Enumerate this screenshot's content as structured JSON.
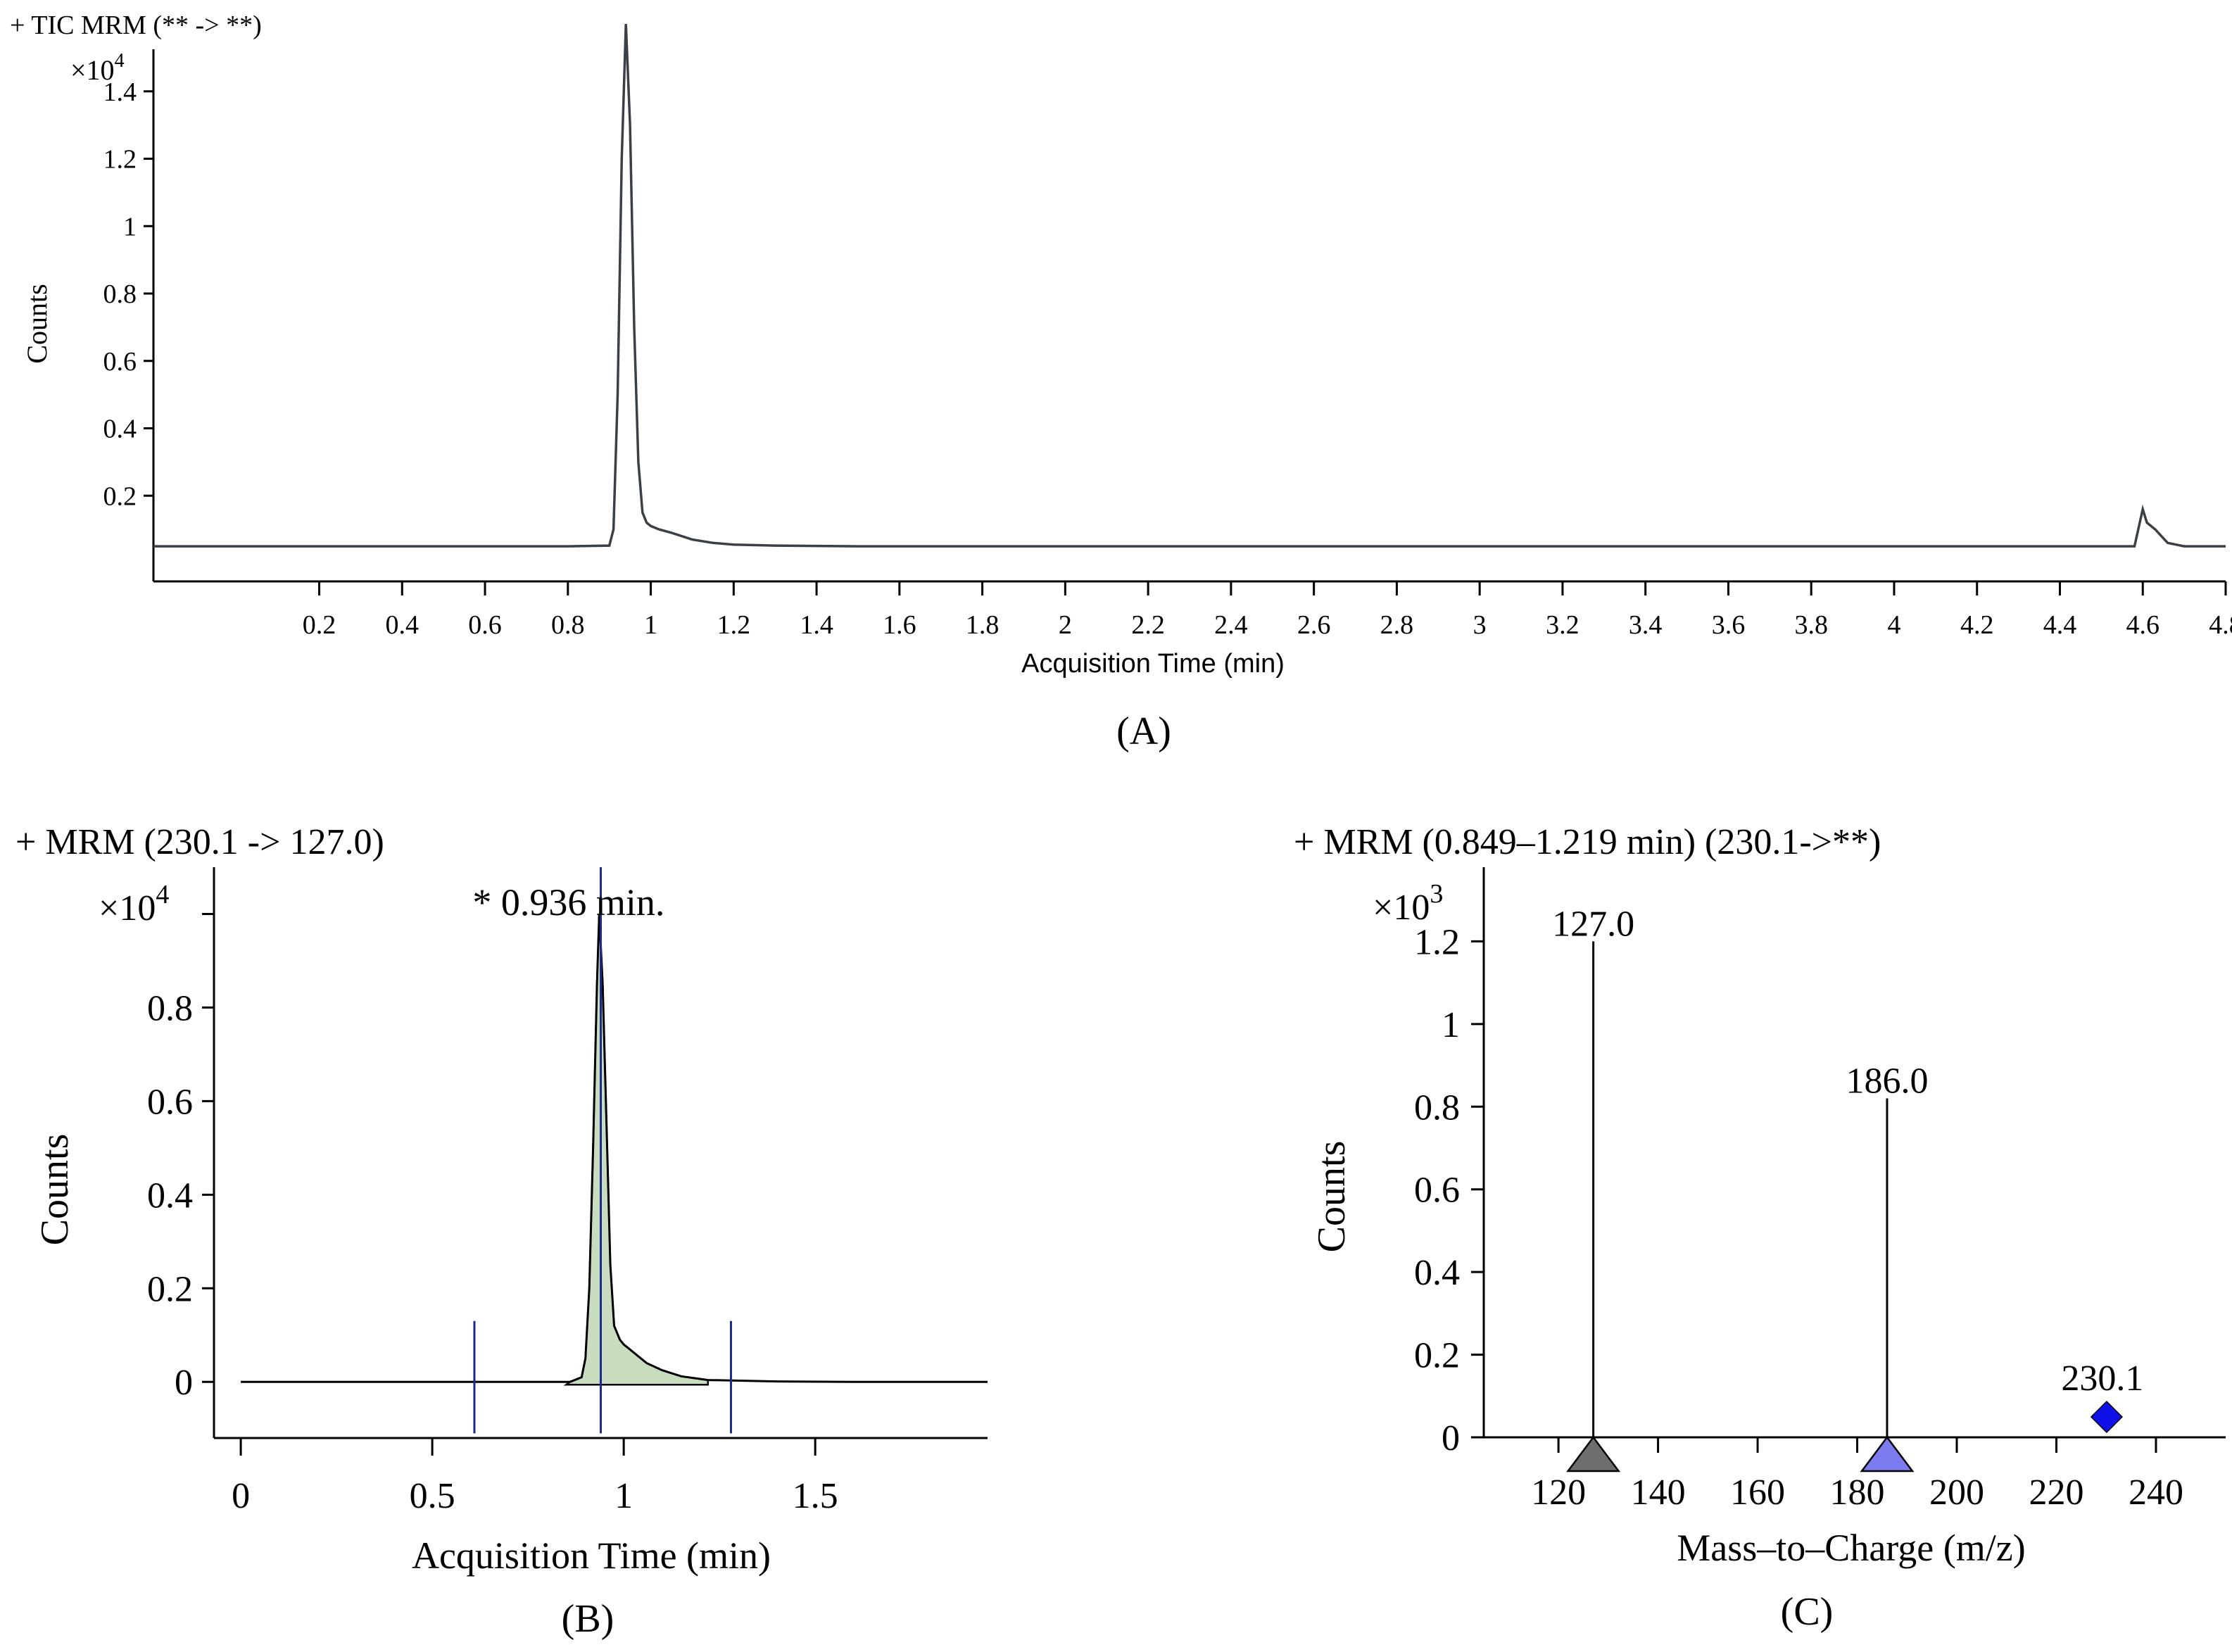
{
  "chart_data": [
    {
      "type": "line",
      "panel_label": "(A)",
      "title": "+ TIC MRM (** -> **)",
      "ylabel": "Counts",
      "xlabel": "Acquisition Time (min)",
      "y_multiplier": "×10",
      "y_multiplier_exp": "4",
      "xlim": [
        -0.2,
        4.8
      ],
      "ylim": [
        0.0,
        1.6
      ],
      "x_ticks": [
        0.2,
        0.4,
        0.6,
        0.8,
        1,
        1.2,
        1.4,
        1.6,
        1.8,
        2,
        2.2,
        2.4,
        2.6,
        2.8,
        3,
        3.2,
        3.4,
        3.6,
        3.8,
        4,
        4.2,
        4.4,
        4.6,
        4.8
      ],
      "x_tick_labels": [
        "0.2",
        "0.4",
        "0.6",
        "0.8",
        "1",
        "1.2",
        "1.4",
        "1.6",
        "1.8",
        "2",
        "2.2",
        "2.4",
        "2.6",
        "2.8",
        "3",
        "3.2",
        "3.4",
        "3.6",
        "3.8",
        "4",
        "4.2",
        "4.4",
        "4.6",
        "4.8"
      ],
      "y_ticks": [
        0.2,
        0.4,
        0.6,
        0.8,
        1,
        1.2,
        1.4
      ],
      "y_tick_labels": [
        "0.2",
        "0.4",
        "0.6",
        "0.8",
        "1",
        "1.2",
        "1.4"
      ],
      "line_color": "#3b4046",
      "series": [
        {
          "x": [
            -0.2,
            0.8,
            0.9,
            0.91,
            0.92,
            0.93,
            0.94,
            0.95,
            0.96,
            0.97,
            0.98,
            0.99,
            1.0,
            1.02,
            1.05,
            1.1,
            1.15,
            1.2,
            1.3,
            1.5,
            2.0,
            2.5,
            3.0,
            3.5,
            4.0,
            4.3,
            4.58,
            4.6,
            4.61,
            4.63,
            4.66,
            4.7,
            4.8
          ],
          "y": [
            0.05,
            0.05,
            0.052,
            0.1,
            0.5,
            1.2,
            1.6,
            1.3,
            0.7,
            0.3,
            0.15,
            0.12,
            0.11,
            0.1,
            0.09,
            0.07,
            0.06,
            0.055,
            0.052,
            0.05,
            0.05,
            0.05,
            0.05,
            0.05,
            0.05,
            0.05,
            0.05,
            0.16,
            0.12,
            0.1,
            0.06,
            0.05,
            0.05
          ]
        }
      ]
    },
    {
      "type": "line",
      "panel_label": "(B)",
      "title": "+ MRM (230.1 -> 127.0)",
      "ylabel": "Counts",
      "xlabel": "Acquisition Time (min)",
      "y_multiplier": "×10",
      "y_multiplier_exp": "4",
      "xlim": [
        -0.07,
        1.95
      ],
      "ylim": [
        -0.12,
        1.1
      ],
      "x_ticks": [
        0,
        0.5,
        1,
        1.5
      ],
      "x_tick_labels": [
        "0",
        "0.5",
        "1",
        "1.5"
      ],
      "y_ticks": [
        0,
        0.2,
        0.4,
        0.6,
        0.8,
        1.0
      ],
      "y_tick_labels": [
        "0",
        "0.2",
        "0.4",
        "0.6",
        "0.8",
        ""
      ],
      "annotation": "* 0.936 min.",
      "peak_time": 0.936,
      "integration_start": 0.85,
      "integration_end": 1.22,
      "marker_lines_x": [
        0.61,
        0.94,
        1.28
      ],
      "fill_color": "#c8dcc0",
      "marker_color": "#1c2a8a",
      "series": [
        {
          "x": [
            0,
            0.86,
            0.89,
            0.9,
            0.91,
            0.92,
            0.93,
            0.936,
            0.945,
            0.955,
            0.965,
            0.975,
            0.99,
            1.0,
            1.03,
            1.06,
            1.1,
            1.15,
            1.22,
            1.4,
            1.6,
            1.95
          ],
          "y": [
            0,
            0,
            0.01,
            0.05,
            0.2,
            0.5,
            0.85,
            1.0,
            0.85,
            0.55,
            0.25,
            0.12,
            0.09,
            0.08,
            0.06,
            0.04,
            0.025,
            0.012,
            0.004,
            0.001,
            0,
            0
          ]
        }
      ]
    },
    {
      "type": "bar",
      "panel_label": "(C)",
      "title": "+ MRM (0.849–1.219 min) (230.1->**)",
      "ylabel": "Counts",
      "xlabel": "Mass–to–Charge (m/z)",
      "y_multiplier": "×10",
      "y_multiplier_exp": "3",
      "xlim": [
        105,
        254
      ],
      "ylim": [
        0,
        1.4
      ],
      "x_ticks": [
        120,
        140,
        160,
        180,
        200,
        220,
        240
      ],
      "x_tick_labels": [
        "120",
        "140",
        "160",
        "180",
        "200",
        "220",
        "240"
      ],
      "y_ticks": [
        0,
        0.2,
        0.4,
        0.6,
        0.8,
        1,
        1.2
      ],
      "y_tick_labels": [
        "0",
        "0.2",
        "0.4",
        "0.6",
        "0.8",
        "1",
        "1.2"
      ],
      "peaks": [
        {
          "mz": 127.0,
          "label": "127.0",
          "value": 1.2,
          "marker": "triangle",
          "marker_color": "#6e6e6e"
        },
        {
          "mz": 186.0,
          "label": "186.0",
          "value": 0.82,
          "marker": "triangle",
          "marker_color": "#7c7cf0"
        },
        {
          "mz": 230.1,
          "label": "230.1",
          "value": 0.0,
          "marker": "diamond",
          "marker_color": "#1010e8"
        }
      ]
    }
  ]
}
